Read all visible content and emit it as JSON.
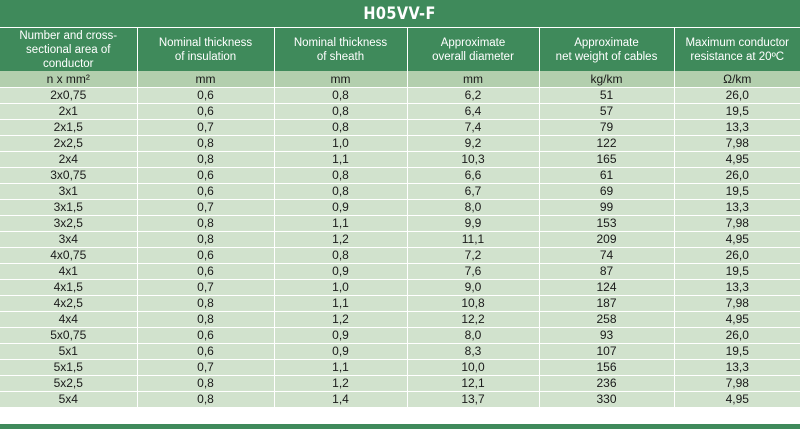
{
  "title": "H05VV-F",
  "columns": [
    "Number and cross-\nsectional area of\nconductor",
    "Nominal thickness\nof insulation",
    "Nominal thickness\nof sheath",
    "Approximate\noverall diameter",
    "Approximate\nnet weight of cables",
    "Maximum conductor\nresistance at 20ºC"
  ],
  "units": [
    "n x mm²",
    "mm",
    "mm",
    "mm",
    "kg/km",
    "Ω/km"
  ],
  "rows": [
    [
      "2x0,75",
      "0,6",
      "0,8",
      "6,2",
      "51",
      "26,0"
    ],
    [
      "2x1",
      "0,6",
      "0,8",
      "6,4",
      "57",
      "19,5"
    ],
    [
      "2x1,5",
      "0,7",
      "0,8",
      "7,4",
      "79",
      "13,3"
    ],
    [
      "2x2,5",
      "0,8",
      "1,0",
      "9,2",
      "122",
      "7,98"
    ],
    [
      "2x4",
      "0,8",
      "1,1",
      "10,3",
      "165",
      "4,95"
    ],
    [
      "3x0,75",
      "0,6",
      "0,8",
      "6,6",
      "61",
      "26,0"
    ],
    [
      "3x1",
      "0,6",
      "0,8",
      "6,7",
      "69",
      "19,5"
    ],
    [
      "3x1,5",
      "0,7",
      "0,9",
      "8,0",
      "99",
      "13,3"
    ],
    [
      "3x2,5",
      "0,8",
      "1,1",
      "9,9",
      "153",
      "7,98"
    ],
    [
      "3x4",
      "0,8",
      "1,2",
      "11,1",
      "209",
      "4,95"
    ],
    [
      "4x0,75",
      "0,6",
      "0,8",
      "7,2",
      "74",
      "26,0"
    ],
    [
      "4x1",
      "0,6",
      "0,9",
      "7,6",
      "87",
      "19,5"
    ],
    [
      "4x1,5",
      "0,7",
      "1,0",
      "9,0",
      "124",
      "13,3"
    ],
    [
      "4x2,5",
      "0,8",
      "1,1",
      "10,8",
      "187",
      "7,98"
    ],
    [
      "4x4",
      "0,8",
      "1,2",
      "12,2",
      "258",
      "4,95"
    ],
    [
      "5x0,75",
      "0,6",
      "0,9",
      "8,0",
      "93",
      "26,0"
    ],
    [
      "5x1",
      "0,6",
      "0,9",
      "8,3",
      "107",
      "19,5"
    ],
    [
      "5x1,5",
      "0,7",
      "1,1",
      "10,0",
      "156",
      "13,3"
    ],
    [
      "5x2,5",
      "0,8",
      "1,2",
      "12,1",
      "236",
      "7,98"
    ],
    [
      "5x4",
      "0,8",
      "1,4",
      "13,7",
      "330",
      "4,95"
    ]
  ],
  "colors": {
    "header_green": "#3f8a5b",
    "unit_row": "#b3cfae",
    "data_row": "#d1e2cd",
    "text": "#1a1a1a"
  }
}
